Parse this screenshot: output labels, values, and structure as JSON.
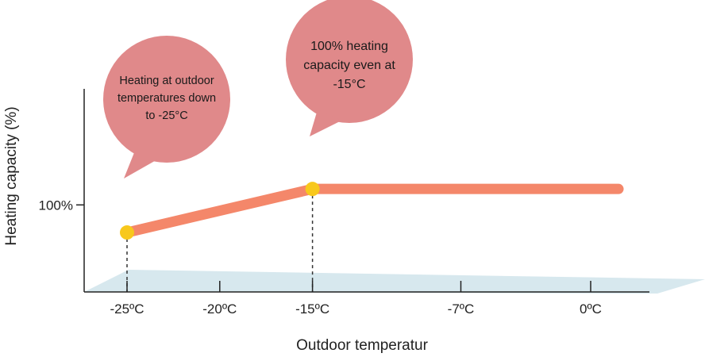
{
  "chart_data": {
    "type": "line",
    "xlabel": "Outdoor temperatur",
    "ylabel": "Heating capacity (%)",
    "x_ticks": [
      "-25ºC",
      "-20ºC",
      "-15ºC",
      "-7ºC",
      "0ºC"
    ],
    "x_tick_values": [
      -25,
      -20,
      -15,
      -7,
      0
    ],
    "y_ticks": [
      "100%"
    ],
    "y_tick_values": [
      100
    ],
    "xlim": [
      -26.2,
      1.5
    ],
    "ylim": [
      40,
      180
    ],
    "series": [
      {
        "x": [
          -25,
          -15,
          1.5
        ],
        "y": [
          81,
          111,
          111
        ]
      }
    ],
    "markers": [
      {
        "x": -25,
        "y": 81
      },
      {
        "x": -15,
        "y": 111
      }
    ],
    "annotations": [
      {
        "x": -25,
        "lines": [
          "Heating at outdoor",
          "temperatures down",
          "to -25°C"
        ]
      },
      {
        "x": -15,
        "lines": [
          "100% heating",
          "capacity even at",
          "-15°C"
        ]
      }
    ],
    "colors": {
      "line": "#f4876a",
      "marker": "#f8c81c",
      "bubble": "#e0898a",
      "axis": "#222222",
      "floor": "#d7e8ee"
    },
    "grid": false
  }
}
